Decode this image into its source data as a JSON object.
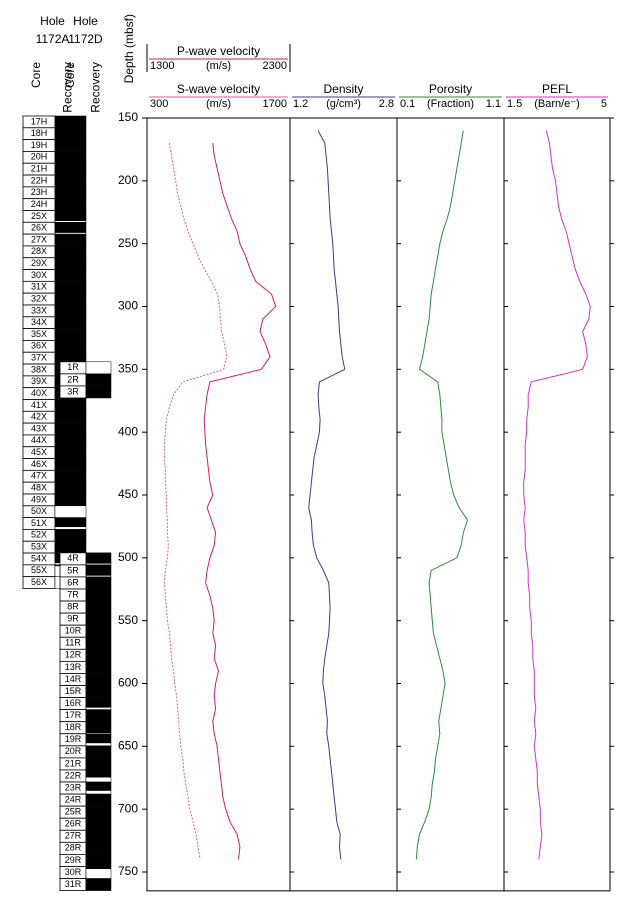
{
  "chart_data": {
    "type": "line",
    "y_label": "Depth (mbsf)",
    "ylim": [
      150,
      765
    ],
    "yticks": [
      150,
      200,
      250,
      300,
      350,
      400,
      450,
      500,
      550,
      600,
      650,
      700,
      750
    ],
    "depth": [
      160,
      170,
      180,
      190,
      200,
      210,
      220,
      230,
      240,
      250,
      260,
      270,
      280,
      290,
      300,
      310,
      320,
      330,
      340,
      350,
      360,
      370,
      380,
      390,
      400,
      410,
      420,
      430,
      440,
      450,
      460,
      470,
      480,
      490,
      500,
      510,
      520,
      530,
      540,
      550,
      560,
      570,
      580,
      590,
      600,
      610,
      620,
      630,
      640,
      650,
      660,
      670,
      680,
      690,
      700,
      710,
      720,
      730,
      740
    ],
    "tracks": [
      {
        "name": "P-wave velocity",
        "unit": "(m/s)",
        "xlim": [
          1300,
          2300
        ],
        "color": "#d81b60",
        "values": [
          null,
          1760,
          1770,
          1790,
          1810,
          1830,
          1860,
          1890,
          1930,
          1950,
          1990,
          2020,
          2060,
          2170,
          2200,
          2110,
          2090,
          2130,
          2160,
          2100,
          1740,
          1720,
          1710,
          1700,
          1705,
          1710,
          1720,
          1730,
          1740,
          1760,
          1720,
          1750,
          1780,
          1770,
          1740,
          1720,
          1710,
          1740,
          1760,
          1770,
          1760,
          1780,
          1770,
          1800,
          1780,
          1770,
          1780,
          1760,
          1770,
          1790,
          1800,
          1810,
          1820,
          1830,
          1850,
          1880,
          1930,
          1950,
          1940
        ]
      },
      {
        "name": "S-wave velocity",
        "unit": "(m/s)",
        "xlim": [
          300,
          1700
        ],
        "color": "#e05a9a",
        "values": [
          null,
          520,
          540,
          560,
          580,
          600,
          630,
          660,
          700,
          750,
          800,
          860,
          930,
          990,
          1010,
          1020,
          1030,
          1060,
          1080,
          1050,
          650,
          560,
          520,
          490,
          480,
          470,
          470,
          480,
          480,
          490,
          490,
          500,
          500,
          510,
          500,
          480,
          470,
          480,
          490,
          500,
          520,
          530,
          540,
          560,
          570,
          590,
          600,
          610,
          620,
          630,
          650,
          660,
          680,
          700,
          720,
          750,
          780,
          800,
          820
        ]
      },
      {
        "name": "Density",
        "unit": "(g/cm³)",
        "xlim": [
          1.2,
          2.8
        ],
        "color": "#3b3b8f",
        "values": [
          1.62,
          1.72,
          1.74,
          1.76,
          1.77,
          1.78,
          1.79,
          1.8,
          1.82,
          1.84,
          1.85,
          1.86,
          1.88,
          1.9,
          1.92,
          1.93,
          1.94,
          1.96,
          1.98,
          2.02,
          1.64,
          1.62,
          1.63,
          1.65,
          1.64,
          1.6,
          1.56,
          1.54,
          1.52,
          1.5,
          1.48,
          1.52,
          1.53,
          1.55,
          1.6,
          1.7,
          1.78,
          1.79,
          1.8,
          1.79,
          1.78,
          1.75,
          1.72,
          1.7,
          1.69,
          1.72,
          1.74,
          1.76,
          1.75,
          1.78,
          1.8,
          1.82,
          1.84,
          1.86,
          1.88,
          1.9,
          1.95,
          1.94,
          1.96
        ]
      },
      {
        "name": "Porosity",
        "unit": "(Fraction)",
        "xlim": [
          0.1,
          1.1
        ],
        "color": "#2e8b3a",
        "values": [
          0.72,
          0.7,
          0.68,
          0.66,
          0.64,
          0.62,
          0.6,
          0.57,
          0.53,
          0.5,
          0.48,
          0.46,
          0.44,
          0.42,
          0.41,
          0.4,
          0.38,
          0.36,
          0.34,
          0.31,
          0.48,
          0.5,
          0.51,
          0.52,
          0.52,
          0.54,
          0.56,
          0.58,
          0.6,
          0.63,
          0.68,
          0.76,
          0.72,
          0.7,
          0.66,
          0.42,
          0.4,
          0.41,
          0.42,
          0.43,
          0.44,
          0.47,
          0.5,
          0.53,
          0.55,
          0.53,
          0.51,
          0.49,
          0.5,
          0.48,
          0.46,
          0.45,
          0.43,
          0.42,
          0.4,
          0.36,
          0.31,
          0.29,
          0.28
        ]
      },
      {
        "name": "PEFL",
        "unit": "(Barn/e⁻)",
        "xlim": [
          1.5,
          5
        ],
        "color": "#cc33cc",
        "values": [
          2.9,
          3.0,
          3.05,
          3.1,
          3.2,
          3.25,
          3.3,
          3.4,
          3.55,
          3.65,
          3.75,
          3.85,
          4.0,
          4.2,
          4.35,
          4.3,
          4.1,
          4.2,
          4.25,
          4.1,
          2.4,
          2.3,
          2.3,
          2.25,
          2.25,
          2.2,
          2.2,
          2.2,
          2.15,
          2.15,
          2.2,
          2.15,
          2.2,
          2.2,
          2.25,
          2.3,
          2.3,
          2.35,
          2.35,
          2.4,
          2.4,
          2.45,
          2.45,
          2.5,
          2.5,
          2.5,
          2.55,
          2.5,
          2.55,
          2.5,
          2.55,
          2.6,
          2.6,
          2.65,
          2.7,
          2.7,
          2.75,
          2.7,
          2.65
        ]
      }
    ],
    "holes": [
      {
        "hole_label": "Hole",
        "name": "1172A",
        "core_label": "Core",
        "recovery_label": "Recovery",
        "cores": [
          "17H",
          "18H",
          "19H",
          "20H",
          "21H",
          "22H",
          "23H",
          "24H",
          "25X",
          "26X",
          "27X",
          "28X",
          "29X",
          "30X",
          "31X",
          "32X",
          "33X",
          "34X",
          "35X",
          "36X",
          "37X",
          "38X",
          "39X",
          "40X",
          "41X",
          "42X",
          "43X",
          "44X",
          "45X",
          "46X",
          "47X",
          "48X",
          "49X",
          "50X",
          "51X",
          "52X",
          "53X",
          "54X",
          "55X",
          "56X"
        ],
        "tops": [
          148.4,
          157.8,
          167.2,
          176.6,
          186.0,
          195.4,
          204.8,
          214.2,
          223.6,
          233.0,
          242.4,
          251.8,
          261.2,
          270.6,
          280.0,
          289.4,
          298.8,
          308.2,
          317.6,
          327.0,
          336.4,
          345.8,
          355.2,
          364.6,
          374.0,
          383.4,
          392.8,
          402.2,
          411.6,
          421.0,
          430.4,
          439.8,
          449.2,
          458.6,
          468.0,
          477.4,
          486.8,
          496.2,
          505.6,
          515.0
        ],
        "bottoms": [
          157.8,
          167.2,
          176.6,
          186.0,
          195.4,
          204.8,
          214.2,
          223.6,
          233.0,
          242.4,
          251.8,
          261.2,
          270.6,
          280.0,
          289.4,
          298.8,
          308.2,
          317.6,
          327.0,
          336.4,
          345.8,
          355.2,
          364.6,
          374.0,
          383.4,
          392.8,
          402.2,
          411.6,
          421.0,
          430.4,
          439.8,
          449.2,
          458.6,
          468.0,
          477.4,
          486.8,
          496.2,
          505.6,
          515.0,
          524.4
        ],
        "recovered": [
          9.4,
          9.4,
          9.4,
          9.4,
          9.4,
          9.4,
          9.4,
          9.4,
          8.4,
          8.4,
          9.4,
          9.4,
          9.4,
          9.4,
          9.4,
          9.4,
          9.4,
          9.4,
          9.4,
          9.4,
          9.4,
          9.4,
          9.4,
          9.4,
          9.4,
          9.4,
          9.4,
          9.4,
          9.4,
          9.4,
          9.4,
          9.4,
          9.4,
          0,
          7.5,
          9.4,
          9.4,
          8.0,
          1.0,
          0
        ]
      },
      {
        "hole_label": "Hole",
        "name": "1172D",
        "core_label": "Core",
        "recovery_label": "Recovery",
        "cores": [
          "1R",
          "2R",
          "3R",
          "4R",
          "5R",
          "6R",
          "7R",
          "8R",
          "9R",
          "10R",
          "11R",
          "12R",
          "13R",
          "14R",
          "15R",
          "16R",
          "17R",
          "18R",
          "19R",
          "20R",
          "21R",
          "22R",
          "23R",
          "24R",
          "25R",
          "26R",
          "27R",
          "28R",
          "29R",
          "30R",
          "31R"
        ],
        "tops": [
          344.0,
          353.6,
          363.2,
          496.0,
          505.6,
          515.2,
          524.8,
          534.4,
          544.0,
          553.6,
          563.2,
          572.8,
          582.4,
          592.0,
          601.6,
          611.2,
          620.8,
          630.4,
          640.0,
          649.6,
          659.2,
          668.8,
          678.4,
          688.0,
          697.6,
          707.2,
          716.8,
          726.4,
          736.0,
          745.6,
          755.2
        ],
        "bottoms": [
          353.6,
          363.2,
          372.8,
          505.6,
          515.2,
          524.8,
          534.4,
          544.0,
          553.6,
          563.2,
          572.8,
          582.4,
          592.0,
          601.6,
          611.2,
          620.8,
          630.4,
          640.0,
          649.6,
          659.2,
          668.8,
          678.4,
          688.0,
          697.6,
          707.2,
          716.8,
          726.4,
          736.0,
          745.6,
          755.2,
          764.8
        ],
        "recovered": [
          0,
          9.6,
          9.6,
          8.6,
          8.6,
          9.6,
          9.6,
          9.6,
          9.6,
          9.6,
          9.6,
          9.6,
          9.6,
          9.6,
          9.6,
          8.0,
          9.6,
          9.0,
          7.5,
          9.6,
          9.6,
          6.0,
          7.0,
          9.6,
          9.6,
          9.6,
          9.6,
          9.6,
          9.6,
          2.0,
          9.6
        ]
      }
    ]
  }
}
